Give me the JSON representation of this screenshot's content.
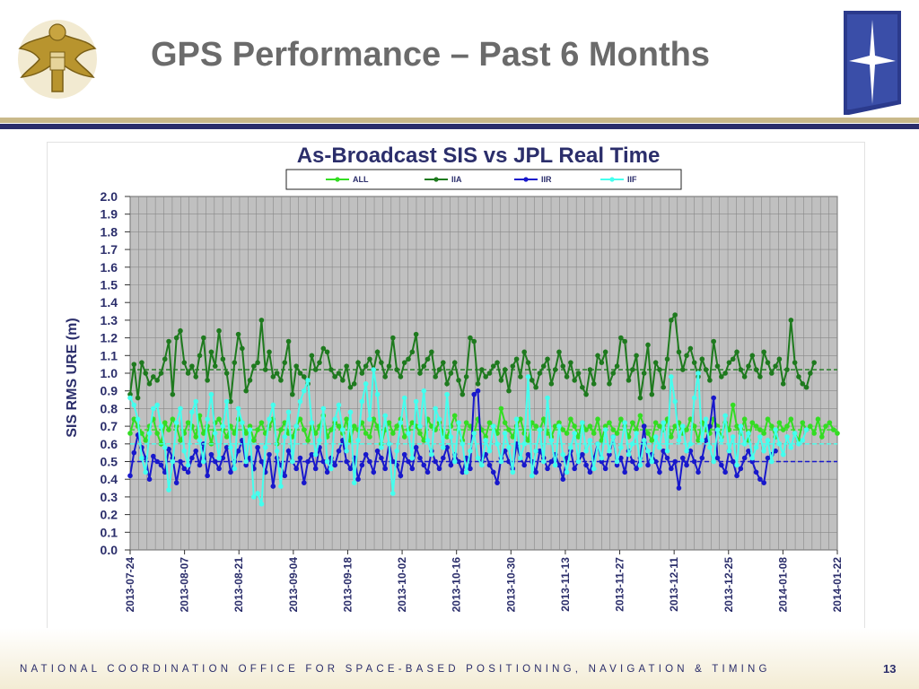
{
  "slide": {
    "title": "GPS Performance – Past 6 Months",
    "footer": "NATIONAL COORDINATION OFFICE FOR SPACE-BASED POSITIONING, NAVIGATION & TIMING",
    "page_number": "13",
    "colors": {
      "title": "#6b6b6b",
      "navy": "#2b2e6b",
      "gold": "#c9b98a"
    },
    "icons": {
      "seal": "us-state-department-eagle-seal-icon",
      "logo": "gps-star-logo-icon"
    }
  },
  "chart_data": {
    "type": "line",
    "title": "As-Broadcast SIS vs JPL Real Time",
    "ylabel": "SIS RMS URE (m)",
    "xlabel": "",
    "ylim": [
      0.0,
      2.0
    ],
    "yticks": [
      "2.0",
      "1.9",
      "1.8",
      "1.7",
      "1.6",
      "1.5",
      "1.4",
      "1.3",
      "1.2",
      "1.1",
      "1.0",
      "0.9",
      "0.8",
      "0.7",
      "0.6",
      "0.5",
      "0.4",
      "0.3",
      "0.2",
      "0.1",
      "0.0"
    ],
    "x_ticks": [
      "2013-07-24",
      "2013-08-07",
      "2013-08-21",
      "2013-09-04",
      "2013-09-18",
      "2013-10-02",
      "2013-10-16",
      "2013-10-30",
      "2013-11-13",
      "2013-11-27",
      "2013-12-11",
      "2013-12-25",
      "2014-01-08",
      "2014-01-22"
    ],
    "grid": true,
    "legend_position": "top",
    "plot_background": "#c0c0c0",
    "series": [
      {
        "name": "ALL",
        "color": "#33dd22",
        "trend": 0.68,
        "values": [
          0.66,
          0.74,
          0.7,
          0.66,
          0.62,
          0.7,
          0.74,
          0.66,
          0.6,
          0.72,
          0.68,
          0.74,
          0.7,
          0.62,
          0.66,
          0.72,
          0.7,
          0.64,
          0.76,
          0.66,
          0.7,
          0.6,
          0.72,
          0.74,
          0.68,
          0.64,
          0.7,
          0.66,
          0.74,
          0.72,
          0.66,
          0.7,
          0.62,
          0.68,
          0.72,
          0.66,
          0.7,
          0.74,
          0.6,
          0.68,
          0.72,
          0.66,
          0.64,
          0.7,
          0.74,
          0.68,
          0.62,
          0.72,
          0.66,
          0.7,
          0.76,
          0.64,
          0.68,
          0.72,
          0.7,
          0.66,
          0.74,
          0.62,
          0.7,
          0.68,
          0.72,
          0.66,
          0.64,
          0.74,
          0.7,
          0.6,
          0.68,
          0.72,
          0.66,
          0.7,
          0.74,
          0.64,
          0.68,
          0.72,
          0.7,
          0.66,
          0.62,
          0.74,
          0.7,
          0.68,
          0.72,
          0.66,
          0.64,
          0.7,
          0.76,
          0.68,
          0.62,
          0.72,
          0.7,
          0.66,
          0.74,
          0.68,
          0.64,
          0.72,
          0.7,
          0.66,
          0.8,
          0.72,
          0.68,
          0.64,
          0.7,
          0.74,
          0.66,
          0.62,
          0.72,
          0.7,
          0.68,
          0.74,
          0.66,
          0.64,
          0.7,
          0.72,
          0.68,
          0.66,
          0.74,
          0.7,
          0.64,
          0.72,
          0.68,
          0.7,
          0.66,
          0.74,
          0.62,
          0.7,
          0.72,
          0.68,
          0.66,
          0.74,
          0.7,
          0.64,
          0.72,
          0.68,
          0.76,
          0.7,
          0.66,
          0.62,
          0.72,
          0.7,
          0.68,
          0.74,
          0.64,
          0.7,
          0.72,
          0.66,
          0.68,
          0.74,
          0.7,
          0.62,
          0.72,
          0.68,
          0.66,
          0.74,
          0.7,
          0.64,
          0.72,
          0.68,
          0.82,
          0.7,
          0.66,
          0.74,
          0.62,
          0.72,
          0.7,
          0.68,
          0.66,
          0.74,
          0.7,
          0.64,
          0.72,
          0.68,
          0.7,
          0.74,
          0.66,
          0.62,
          0.72,
          0.68,
          0.7,
          0.66,
          0.74,
          0.64,
          0.7,
          0.72,
          0.68,
          0.66
        ]
      },
      {
        "name": "IIA",
        "color": "#1e7a1e",
        "trend": 1.02,
        "values": [
          0.88,
          1.05,
          0.86,
          1.06,
          1.0,
          0.94,
          0.98,
          0.96,
          1.0,
          1.08,
          1.18,
          0.88,
          1.2,
          1.24,
          1.06,
          1.0,
          1.04,
          0.98,
          1.1,
          1.2,
          0.96,
          1.12,
          1.04,
          1.24,
          1.08,
          1.0,
          0.84,
          1.06,
          1.22,
          1.14,
          0.9,
          0.96,
          1.04,
          1.06,
          1.3,
          1.02,
          1.12,
          0.98,
          1.0,
          0.96,
          1.06,
          1.18,
          0.88,
          1.04,
          1.0,
          0.98,
          0.94,
          1.1,
          1.02,
          1.06,
          1.14,
          1.12,
          1.02,
          0.98,
          1.0,
          0.96,
          1.04,
          0.92,
          0.94,
          1.06,
          1.0,
          1.04,
          1.08,
          1.02,
          1.12,
          1.06,
          0.98,
          1.04,
          1.2,
          1.02,
          0.98,
          1.06,
          1.08,
          1.12,
          1.22,
          1.0,
          1.04,
          1.08,
          1.12,
          0.98,
          1.02,
          1.06,
          0.94,
          1.0,
          1.06,
          0.96,
          0.88,
          0.98,
          1.2,
          1.18,
          0.94,
          1.02,
          0.98,
          1.0,
          1.04,
          1.06,
          0.96,
          1.02,
          0.9,
          1.04,
          1.08,
          0.98,
          1.12,
          1.06,
          0.96,
          0.92,
          1.0,
          1.04,
          1.08,
          0.94,
          1.02,
          1.12,
          1.04,
          0.98,
          1.06,
          0.96,
          1.0,
          0.92,
          0.88,
          1.02,
          0.94,
          1.1,
          1.06,
          1.12,
          0.94,
          1.0,
          1.04,
          1.2,
          1.18,
          0.96,
          1.02,
          1.1,
          0.86,
          1.0,
          1.16,
          0.88,
          1.06,
          1.02,
          0.92,
          1.08,
          1.3,
          1.33,
          1.12,
          1.02,
          1.1,
          1.14,
          1.06,
          0.98,
          1.08,
          1.02,
          0.96,
          1.18,
          1.04,
          0.98,
          1.0,
          1.06,
          1.08,
          1.12,
          1.02,
          0.98,
          1.04,
          1.1,
          1.02,
          0.98,
          1.12,
          1.06,
          1.0,
          1.04,
          1.08,
          0.94,
          1.02,
          1.3,
          1.06,
          0.98,
          0.94,
          0.92,
          1.0,
          1.06
        ]
      },
      {
        "name": "IIR",
        "color": "#1818cc",
        "trend": 0.5,
        "values": [
          0.42,
          0.55,
          0.65,
          0.58,
          0.52,
          0.4,
          0.53,
          0.5,
          0.48,
          0.44,
          0.57,
          0.52,
          0.38,
          0.5,
          0.46,
          0.44,
          0.52,
          0.56,
          0.48,
          0.6,
          0.42,
          0.54,
          0.5,
          0.46,
          0.52,
          0.58,
          0.44,
          0.5,
          0.56,
          0.62,
          0.48,
          0.52,
          0.46,
          0.58,
          0.5,
          0.44,
          0.54,
          0.36,
          0.52,
          0.48,
          0.42,
          0.56,
          0.5,
          0.46,
          0.52,
          0.38,
          0.5,
          0.54,
          0.46,
          0.58,
          0.5,
          0.44,
          0.52,
          0.48,
          0.56,
          0.62,
          0.5,
          0.46,
          0.52,
          0.4,
          0.48,
          0.54,
          0.5,
          0.44,
          0.56,
          0.52,
          0.46,
          0.6,
          0.5,
          0.48,
          0.42,
          0.54,
          0.5,
          0.46,
          0.58,
          0.52,
          0.48,
          0.44,
          0.56,
          0.5,
          0.46,
          0.52,
          0.58,
          0.48,
          0.54,
          0.5,
          0.44,
          0.52,
          0.46,
          0.88,
          0.9,
          0.5,
          0.54,
          0.48,
          0.44,
          0.38,
          0.52,
          0.56,
          0.5,
          0.46,
          0.6,
          0.52,
          0.48,
          0.54,
          0.5,
          0.44,
          0.56,
          0.52,
          0.46,
          0.5,
          0.54,
          0.48,
          0.4,
          0.52,
          0.56,
          0.46,
          0.5,
          0.54,
          0.48,
          0.44,
          0.52,
          0.6,
          0.5,
          0.46,
          0.54,
          0.64,
          0.48,
          0.52,
          0.44,
          0.56,
          0.5,
          0.46,
          0.52,
          0.7,
          0.48,
          0.54,
          0.5,
          0.44,
          0.56,
          0.52,
          0.46,
          0.5,
          0.35,
          0.52,
          0.48,
          0.56,
          0.5,
          0.44,
          0.52,
          0.62,
          0.7,
          0.86,
          0.52,
          0.48,
          0.44,
          0.56,
          0.5,
          0.42,
          0.46,
          0.52,
          0.56,
          0.5,
          0.44,
          0.4,
          0.38,
          0.52,
          0.54,
          0.56
        ]
      },
      {
        "name": "IIF",
        "color": "#44ffee",
        "trend": 0.6,
        "values": [
          0.86,
          0.82,
          0.74,
          0.52,
          0.44,
          0.66,
          0.8,
          0.82,
          0.7,
          0.58,
          0.34,
          0.5,
          0.72,
          0.8,
          0.56,
          0.48,
          0.78,
          0.84,
          0.62,
          0.5,
          0.74,
          0.88,
          0.66,
          0.52,
          0.7,
          0.84,
          0.58,
          0.46,
          0.8,
          0.72,
          0.5,
          0.68,
          0.3,
          0.32,
          0.26,
          0.58,
          0.74,
          0.82,
          0.56,
          0.36,
          0.64,
          0.78,
          0.5,
          0.7,
          0.84,
          0.9,
          0.96,
          0.72,
          0.54,
          0.62,
          0.8,
          0.5,
          0.46,
          0.74,
          0.82,
          0.68,
          0.56,
          0.78,
          0.38,
          0.62,
          0.84,
          0.94,
          0.74,
          1.02,
          0.88,
          0.58,
          0.76,
          0.6,
          0.32,
          0.56,
          0.72,
          0.86,
          0.66,
          0.52,
          0.84,
          0.7,
          0.9,
          0.62,
          0.54,
          0.8,
          0.74,
          0.58,
          0.88,
          0.64,
          0.5,
          0.72,
          0.6,
          0.44,
          0.56,
          0.66,
          0.52,
          0.48,
          0.62,
          0.56,
          0.7,
          0.6,
          0.5,
          0.66,
          0.58,
          0.44,
          0.74,
          0.52,
          0.6,
          0.98,
          0.42,
          0.56,
          0.68,
          0.5,
          0.86,
          0.62,
          0.48,
          0.7,
          0.54,
          0.44,
          0.58,
          0.66,
          0.5,
          0.72,
          0.56,
          0.62,
          0.46,
          0.6,
          0.52,
          0.68,
          0.56,
          0.64,
          0.5,
          0.58,
          0.72,
          0.54,
          0.6,
          0.66,
          0.48,
          0.62,
          0.56,
          0.5,
          0.64,
          0.58,
          0.72,
          0.56,
          0.98,
          0.84,
          0.62,
          0.7,
          0.56,
          0.6,
          0.86,
          1.0,
          0.62,
          0.74,
          0.58,
          0.5,
          0.68,
          0.62,
          0.76,
          0.56,
          0.64,
          0.48,
          0.7,
          0.6,
          0.66,
          0.52,
          0.58,
          0.64,
          0.56,
          0.62,
          0.5,
          0.68,
          0.6,
          0.54,
          0.64,
          0.58,
          0.66,
          0.6,
          0.62,
          0.68
        ]
      }
    ]
  }
}
